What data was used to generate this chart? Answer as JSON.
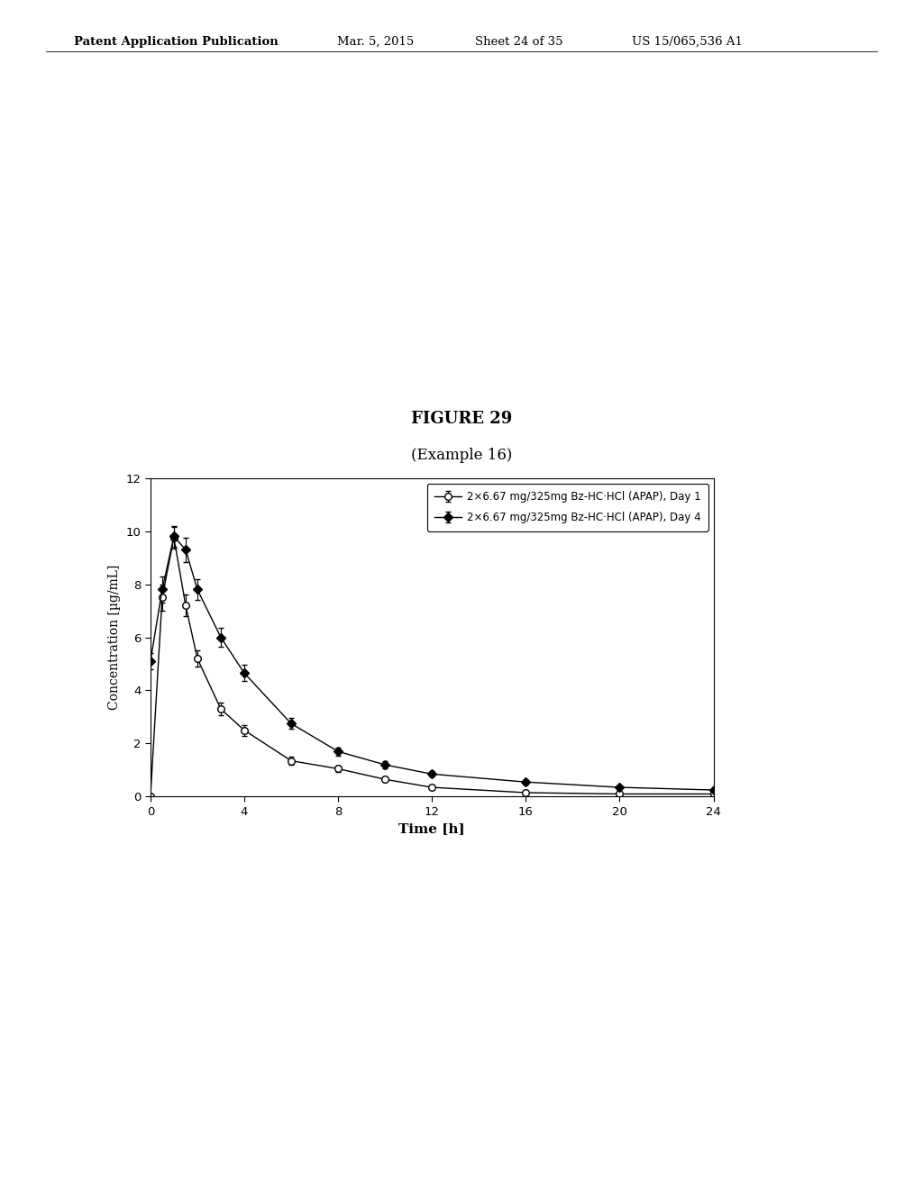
{
  "title": "FIGURE 29",
  "subtitle": "(Example 16)",
  "xlabel": "Time [h]",
  "ylabel": "Concentration [µg/mL]",
  "xlim": [
    0,
    24
  ],
  "ylim": [
    0,
    12
  ],
  "xticks": [
    0,
    4,
    8,
    12,
    16,
    20,
    24
  ],
  "yticks": [
    0,
    2,
    4,
    6,
    8,
    10,
    12
  ],
  "legend_labels": [
    "2×6.67 mg/325mg Bz-HC·HCl (APAP), Day 1",
    "2×6.67 mg/325mg Bz-HC·HCl (APAP), Day 4"
  ],
  "day1_x": [
    0,
    0.5,
    1.0,
    1.5,
    2.0,
    3.0,
    4.0,
    6.0,
    8.0,
    10.0,
    12.0,
    16.0,
    20.0,
    24.0
  ],
  "day1_y": [
    0.0,
    7.5,
    9.75,
    7.2,
    5.2,
    3.3,
    2.5,
    1.35,
    1.05,
    0.65,
    0.35,
    0.15,
    0.1,
    0.1
  ],
  "day1_yerr": [
    0.0,
    0.5,
    0.4,
    0.4,
    0.3,
    0.25,
    0.2,
    0.15,
    0.12,
    0.1,
    0.05,
    0.04,
    0.03,
    0.03
  ],
  "day4_x": [
    0,
    0.5,
    1.0,
    1.5,
    2.0,
    3.0,
    4.0,
    6.0,
    8.0,
    10.0,
    12.0,
    16.0,
    20.0,
    24.0
  ],
  "day4_y": [
    5.1,
    7.8,
    9.8,
    9.3,
    7.8,
    6.0,
    4.65,
    2.75,
    1.7,
    1.2,
    0.85,
    0.55,
    0.35,
    0.25
  ],
  "day4_yerr": [
    0.3,
    0.5,
    0.4,
    0.45,
    0.4,
    0.35,
    0.3,
    0.2,
    0.15,
    0.12,
    0.1,
    0.08,
    0.05,
    0.04
  ],
  "line_color": "#000000",
  "bg_color": "#ffffff",
  "header_left": "Patent Application Publication",
  "header_date": "Mar. 5, 2015",
  "header_sheet": "Sheet 24 of 35",
  "header_patent": "US 15/065,536 A1"
}
